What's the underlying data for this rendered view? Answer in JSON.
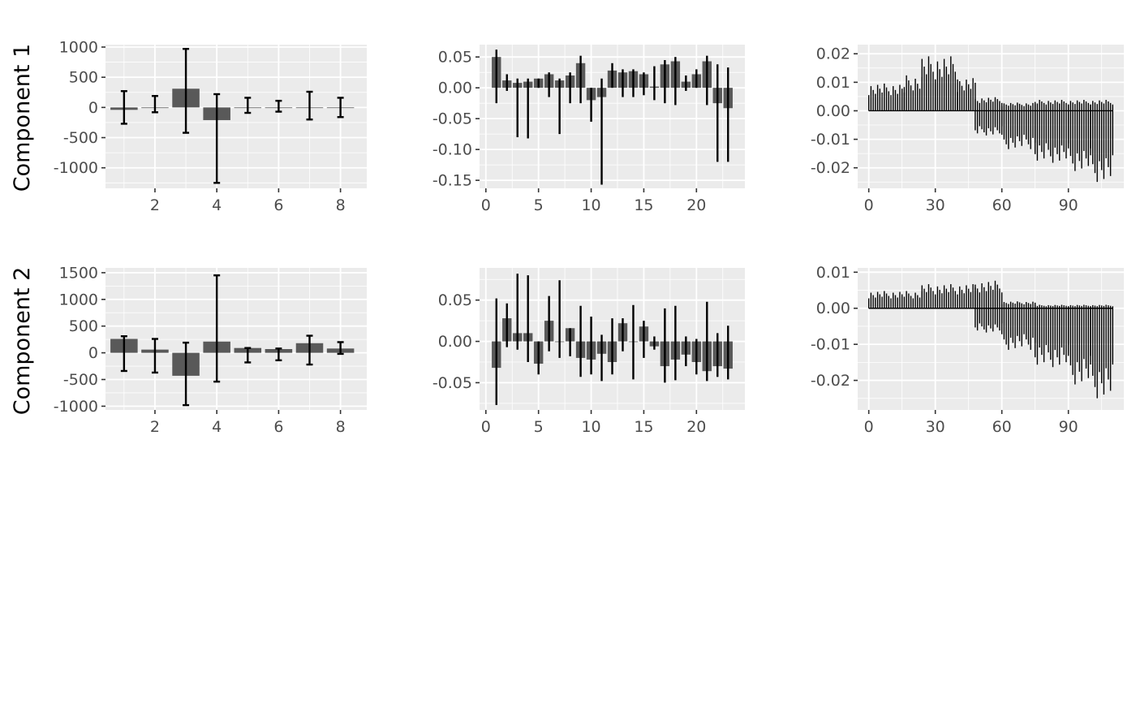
{
  "row_labels": [
    "Component 1",
    "Component 2"
  ],
  "colors": {
    "panel_background": "#ebebeb",
    "grid": "#ffffff",
    "bar_fill": "#595959",
    "line": "#000000",
    "tick_text": "#4d4d4d"
  },
  "chart_data": [
    {
      "type": "bar",
      "row": 0,
      "col": 0,
      "error_bars": true,
      "xlim": [
        0.4,
        8.85
      ],
      "ylim": [
        -1340,
        1040
      ],
      "x_ticks": [
        2,
        4,
        6,
        8
      ],
      "y_ticks": [
        -1000,
        -500,
        0,
        500,
        1000
      ],
      "x": [
        1,
        2,
        3,
        4,
        5,
        6,
        7,
        8
      ],
      "values": [
        -40,
        0,
        310,
        -210,
        0,
        0,
        0,
        -5
      ],
      "error_low": [
        -270,
        -80,
        -420,
        -1250,
        -90,
        -70,
        -200,
        -160
      ],
      "error_high": [
        270,
        190,
        970,
        220,
        160,
        110,
        260,
        160
      ]
    },
    {
      "type": "bar",
      "row": 0,
      "col": 1,
      "error_bars": true,
      "xlim": [
        -0.6,
        24.6
      ],
      "ylim": [
        -0.163,
        0.07
      ],
      "x_ticks": [
        0,
        5,
        10,
        15,
        20
      ],
      "y_ticks": [
        -0.15,
        -0.1,
        -0.05,
        0.0,
        0.05
      ],
      "x": [
        1,
        2,
        3,
        4,
        5,
        6,
        7,
        8,
        9,
        10,
        11,
        12,
        13,
        14,
        15,
        16,
        17,
        18,
        19,
        20,
        21,
        22,
        23
      ],
      "values": [
        0.05,
        0.012,
        0.008,
        0.01,
        0.015,
        0.022,
        0.012,
        0.02,
        0.04,
        -0.02,
        -0.015,
        0.028,
        0.025,
        0.027,
        0.022,
        0.002,
        0.038,
        0.043,
        0.01,
        0.022,
        0.043,
        -0.025,
        -0.033
      ],
      "error_low": [
        -0.025,
        -0.005,
        -0.08,
        -0.082,
        0.0,
        -0.015,
        -0.075,
        -0.025,
        -0.025,
        -0.055,
        -0.157,
        0.0,
        -0.015,
        -0.015,
        -0.012,
        -0.02,
        -0.025,
        -0.028,
        -0.005,
        0.0,
        -0.028,
        -0.12,
        -0.12
      ],
      "error_high": [
        0.062,
        0.022,
        0.015,
        0.015,
        0.015,
        0.025,
        0.015,
        0.025,
        0.052,
        0.0,
        0.015,
        0.04,
        0.03,
        0.03,
        0.025,
        0.035,
        0.045,
        0.05,
        0.02,
        0.03,
        0.052,
        0.038,
        0.033
      ]
    },
    {
      "type": "bar",
      "row": 0,
      "col": 2,
      "error_bars": false,
      "xlim": [
        -5,
        115
      ],
      "ylim": [
        -0.0272,
        0.0232
      ],
      "x_ticks": [
        0,
        30,
        60,
        90
      ],
      "y_ticks": [
        -0.02,
        -0.01,
        0.0,
        0.01,
        0.02
      ],
      "segments": [
        {
          "x": [
            0,
            16
          ],
          "lo": 0.0,
          "hi": 0.01
        },
        {
          "x": [
            16,
            24
          ],
          "lo": 0.0,
          "hi": 0.013
        },
        {
          "x": [
            24,
            30
          ],
          "lo": 0.0,
          "hi": 0.02
        },
        {
          "x": [
            30,
            40
          ],
          "lo": 0.0,
          "hi": 0.02
        },
        {
          "x": [
            40,
            48
          ],
          "lo": 0.0,
          "hi": 0.012
        },
        {
          "x": [
            48,
            60
          ],
          "lo": -0.009,
          "hi": 0.005
        },
        {
          "x": [
            60,
            75
          ],
          "lo": -0.014,
          "hi": 0.003
        },
        {
          "x": [
            75,
            90
          ],
          "lo": -0.019,
          "hi": 0.004
        },
        {
          "x": [
            90,
            100
          ],
          "lo": -0.022,
          "hi": 0.004
        },
        {
          "x": [
            100,
            110
          ],
          "lo": -0.026,
          "hi": 0.004
        }
      ]
    },
    {
      "type": "bar",
      "row": 1,
      "col": 0,
      "error_bars": true,
      "xlim": [
        0.4,
        8.85
      ],
      "ylim": [
        -1070,
        1590
      ],
      "x_ticks": [
        2,
        4,
        6,
        8
      ],
      "y_ticks": [
        -1000,
        -500,
        0,
        500,
        1000,
        1500
      ],
      "x": [
        1,
        2,
        3,
        4,
        5,
        6,
        7,
        8
      ],
      "values": [
        260,
        60,
        -430,
        210,
        90,
        70,
        180,
        80
      ],
      "error_low": [
        -340,
        -370,
        -980,
        -540,
        -180,
        -140,
        -220,
        -20
      ],
      "error_high": [
        310,
        260,
        190,
        1450,
        90,
        80,
        320,
        200
      ]
    },
    {
      "type": "bar",
      "row": 1,
      "col": 1,
      "error_bars": true,
      "xlim": [
        -0.6,
        24.6
      ],
      "ylim": [
        -0.083,
        0.089
      ],
      "x_ticks": [
        0,
        5,
        10,
        15,
        20
      ],
      "y_ticks": [
        -0.05,
        0.0,
        0.05
      ],
      "x": [
        1,
        2,
        3,
        4,
        5,
        6,
        7,
        8,
        9,
        10,
        11,
        12,
        13,
        14,
        15,
        16,
        17,
        18,
        19,
        20,
        21,
        22,
        23
      ],
      "values": [
        -0.032,
        0.028,
        0.01,
        0.01,
        -0.027,
        0.025,
        0.0,
        0.016,
        -0.02,
        -0.022,
        -0.015,
        -0.025,
        0.022,
        0.0,
        0.018,
        -0.006,
        -0.03,
        -0.022,
        -0.016,
        -0.025,
        -0.036,
        -0.03,
        -0.033
      ],
      "error_low": [
        -0.077,
        -0.007,
        -0.01,
        -0.025,
        -0.04,
        -0.012,
        -0.02,
        -0.018,
        -0.043,
        -0.04,
        -0.048,
        -0.04,
        -0.012,
        -0.046,
        -0.02,
        -0.01,
        -0.05,
        -0.047,
        -0.03,
        -0.04,
        -0.048,
        -0.043,
        -0.046
      ],
      "error_high": [
        0.052,
        0.046,
        0.082,
        0.08,
        0.0,
        0.055,
        0.074,
        0.016,
        0.043,
        0.03,
        0.008,
        0.028,
        0.028,
        0.044,
        0.025,
        0.006,
        0.04,
        0.043,
        0.006,
        0.003,
        0.048,
        0.01,
        0.019
      ]
    },
    {
      "type": "bar",
      "row": 1,
      "col": 2,
      "error_bars": false,
      "xlim": [
        -5,
        115
      ],
      "ylim": [
        -0.0282,
        0.0112
      ],
      "x_ticks": [
        0,
        30,
        60,
        90
      ],
      "y_ticks": [
        -0.02,
        -0.01,
        0.0,
        0.01
      ],
      "segments": [
        {
          "x": [
            0,
            24
          ],
          "lo": 0.0,
          "hi": 0.005
        },
        {
          "x": [
            24,
            48
          ],
          "lo": 0.0,
          "hi": 0.007
        },
        {
          "x": [
            48,
            60
          ],
          "lo": -0.007,
          "hi": 0.008
        },
        {
          "x": [
            60,
            75
          ],
          "lo": -0.012,
          "hi": 0.002
        },
        {
          "x": [
            75,
            90
          ],
          "lo": -0.017,
          "hi": 0.001
        },
        {
          "x": [
            90,
            100
          ],
          "lo": -0.022,
          "hi": 0.001
        },
        {
          "x": [
            100,
            110
          ],
          "lo": -0.026,
          "hi": 0.001
        }
      ]
    }
  ]
}
